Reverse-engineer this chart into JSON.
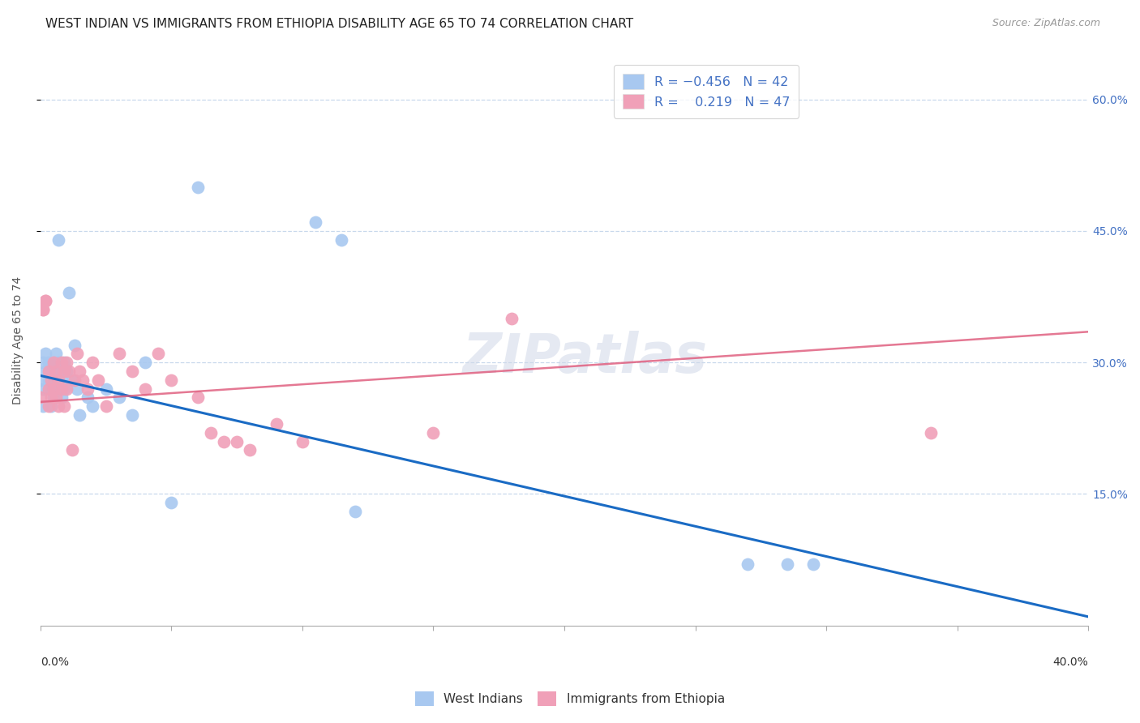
{
  "title": "WEST INDIAN VS IMMIGRANTS FROM ETHIOPIA DISABILITY AGE 65 TO 74 CORRELATION CHART",
  "source": "Source: ZipAtlas.com",
  "ylabel": "Disability Age 65 to 74",
  "ytick_values": [
    0.6,
    0.45,
    0.3,
    0.15
  ],
  "xlim": [
    0.0,
    0.4
  ],
  "ylim": [
    0.0,
    0.65
  ],
  "west_indians": {
    "color": "#a8c8f0",
    "line_color": "#1a6bc4",
    "x": [
      0.0,
      0.001,
      0.001,
      0.001,
      0.002,
      0.002,
      0.003,
      0.003,
      0.004,
      0.004,
      0.004,
      0.005,
      0.005,
      0.005,
      0.006,
      0.006,
      0.007,
      0.007,
      0.008,
      0.008,
      0.009,
      0.009,
      0.01,
      0.011,
      0.012,
      0.013,
      0.014,
      0.015,
      0.018,
      0.02,
      0.025,
      0.03,
      0.035,
      0.04,
      0.05,
      0.06,
      0.105,
      0.115,
      0.12,
      0.27,
      0.285,
      0.295
    ],
    "y": [
      0.28,
      0.3,
      0.27,
      0.25,
      0.31,
      0.29,
      0.3,
      0.28,
      0.29,
      0.27,
      0.25,
      0.3,
      0.28,
      0.26,
      0.31,
      0.29,
      0.44,
      0.3,
      0.28,
      0.26,
      0.3,
      0.27,
      0.29,
      0.38,
      0.28,
      0.32,
      0.27,
      0.24,
      0.26,
      0.25,
      0.27,
      0.26,
      0.24,
      0.3,
      0.14,
      0.5,
      0.46,
      0.44,
      0.13,
      0.07,
      0.07,
      0.07
    ]
  },
  "ethiopia": {
    "color": "#f0a0b8",
    "line_color": "#e06080",
    "x": [
      0.0,
      0.001,
      0.001,
      0.002,
      0.002,
      0.003,
      0.003,
      0.003,
      0.004,
      0.004,
      0.005,
      0.005,
      0.006,
      0.006,
      0.007,
      0.007,
      0.008,
      0.008,
      0.009,
      0.009,
      0.01,
      0.01,
      0.011,
      0.012,
      0.013,
      0.014,
      0.015,
      0.016,
      0.018,
      0.02,
      0.022,
      0.025,
      0.03,
      0.035,
      0.04,
      0.045,
      0.05,
      0.06,
      0.065,
      0.07,
      0.075,
      0.08,
      0.09,
      0.1,
      0.15,
      0.18,
      0.34
    ],
    "y": [
      0.26,
      0.36,
      0.36,
      0.37,
      0.37,
      0.29,
      0.27,
      0.25,
      0.28,
      0.26,
      0.3,
      0.27,
      0.29,
      0.26,
      0.28,
      0.25,
      0.3,
      0.27,
      0.29,
      0.25,
      0.3,
      0.27,
      0.29,
      0.2,
      0.28,
      0.31,
      0.29,
      0.28,
      0.27,
      0.3,
      0.28,
      0.25,
      0.31,
      0.29,
      0.27,
      0.31,
      0.28,
      0.26,
      0.22,
      0.21,
      0.21,
      0.2,
      0.23,
      0.21,
      0.22,
      0.35,
      0.22
    ]
  },
  "blue_line": {
    "x0": 0.0,
    "y0": 0.285,
    "x1": 0.4,
    "y1": 0.01
  },
  "pink_line": {
    "x0": 0.0,
    "y0": 0.255,
    "x1": 0.4,
    "y1": 0.335
  },
  "background_color": "#ffffff",
  "grid_color": "#c8d8ec",
  "watermark": "ZIPatlas",
  "title_fontsize": 11,
  "axis_label_fontsize": 10,
  "tick_fontsize": 10
}
